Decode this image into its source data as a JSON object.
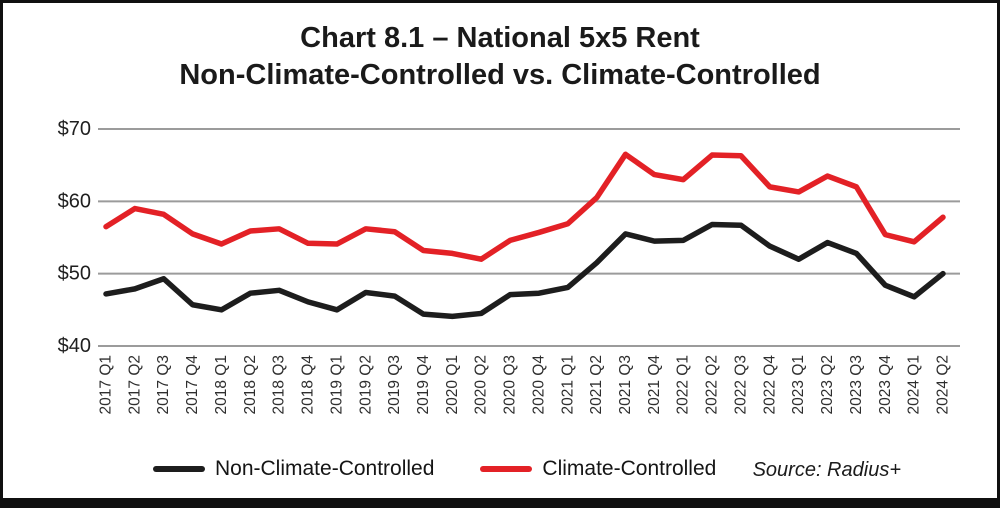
{
  "title": {
    "line1": "Chart 8.1 – National 5x5 Rent",
    "line2": "Non-Climate-Controlled vs. Climate-Controlled"
  },
  "source": "Source: Radius+",
  "legend": [
    {
      "label": "Non-Climate-Controlled",
      "color": "#1d1d1d"
    },
    {
      "label": "Climate-Controlled",
      "color": "#e32126"
    }
  ],
  "chart_data": {
    "type": "line",
    "title": "Chart 8.1 – National 5x5 Rent Non-Climate-Controlled vs. Climate-Controlled",
    "categories": [
      "2017 Q1",
      "2017 Q2",
      "2017 Q3",
      "2017 Q4",
      "2018 Q1",
      "2018 Q2",
      "2018 Q3",
      "2018 Q4",
      "2019 Q1",
      "2019 Q2",
      "2019 Q3",
      "2019 Q4",
      "2020 Q1",
      "2020 Q2",
      "2020 Q3",
      "2020 Q4",
      "2021 Q1",
      "2021 Q2",
      "2021 Q3",
      "2021 Q4",
      "2022 Q1",
      "2022 Q2",
      "2022 Q3",
      "2022 Q4",
      "2023 Q1",
      "2023 Q2",
      "2023 Q3",
      "2023 Q4",
      "2024 Q1",
      "2024 Q2"
    ],
    "series": [
      {
        "name": "Non-Climate-Controlled",
        "color": "#1d1d1d",
        "values": [
          47.2,
          47.9,
          49.3,
          45.7,
          45.0,
          47.3,
          47.7,
          46.1,
          45.0,
          47.4,
          46.9,
          44.4,
          44.1,
          44.5,
          47.1,
          47.3,
          48.1,
          51.5,
          55.5,
          54.5,
          54.6,
          56.8,
          56.7,
          53.8,
          52.0,
          54.3,
          52.8,
          48.4,
          46.8,
          50.0
        ]
      },
      {
        "name": "Climate-Controlled",
        "color": "#e32126",
        "values": [
          56.5,
          59.0,
          58.2,
          55.5,
          54.1,
          55.9,
          56.2,
          54.2,
          54.1,
          56.2,
          55.8,
          53.2,
          52.8,
          52.0,
          54.6,
          55.7,
          56.9,
          60.5,
          66.5,
          63.7,
          63.0,
          66.4,
          66.3,
          62.0,
          61.3,
          63.5,
          62.0,
          55.4,
          54.4,
          57.8
        ]
      }
    ],
    "ylim": [
      40,
      70
    ],
    "y_ticks": [
      40,
      50,
      60,
      70
    ],
    "y_tick_labels": [
      "$40",
      "$50",
      "$60",
      "$70"
    ],
    "xlabel": "",
    "ylabel": "",
    "grid": true,
    "gridline_color": "#9b9b9b",
    "legend_position": "bottom"
  }
}
